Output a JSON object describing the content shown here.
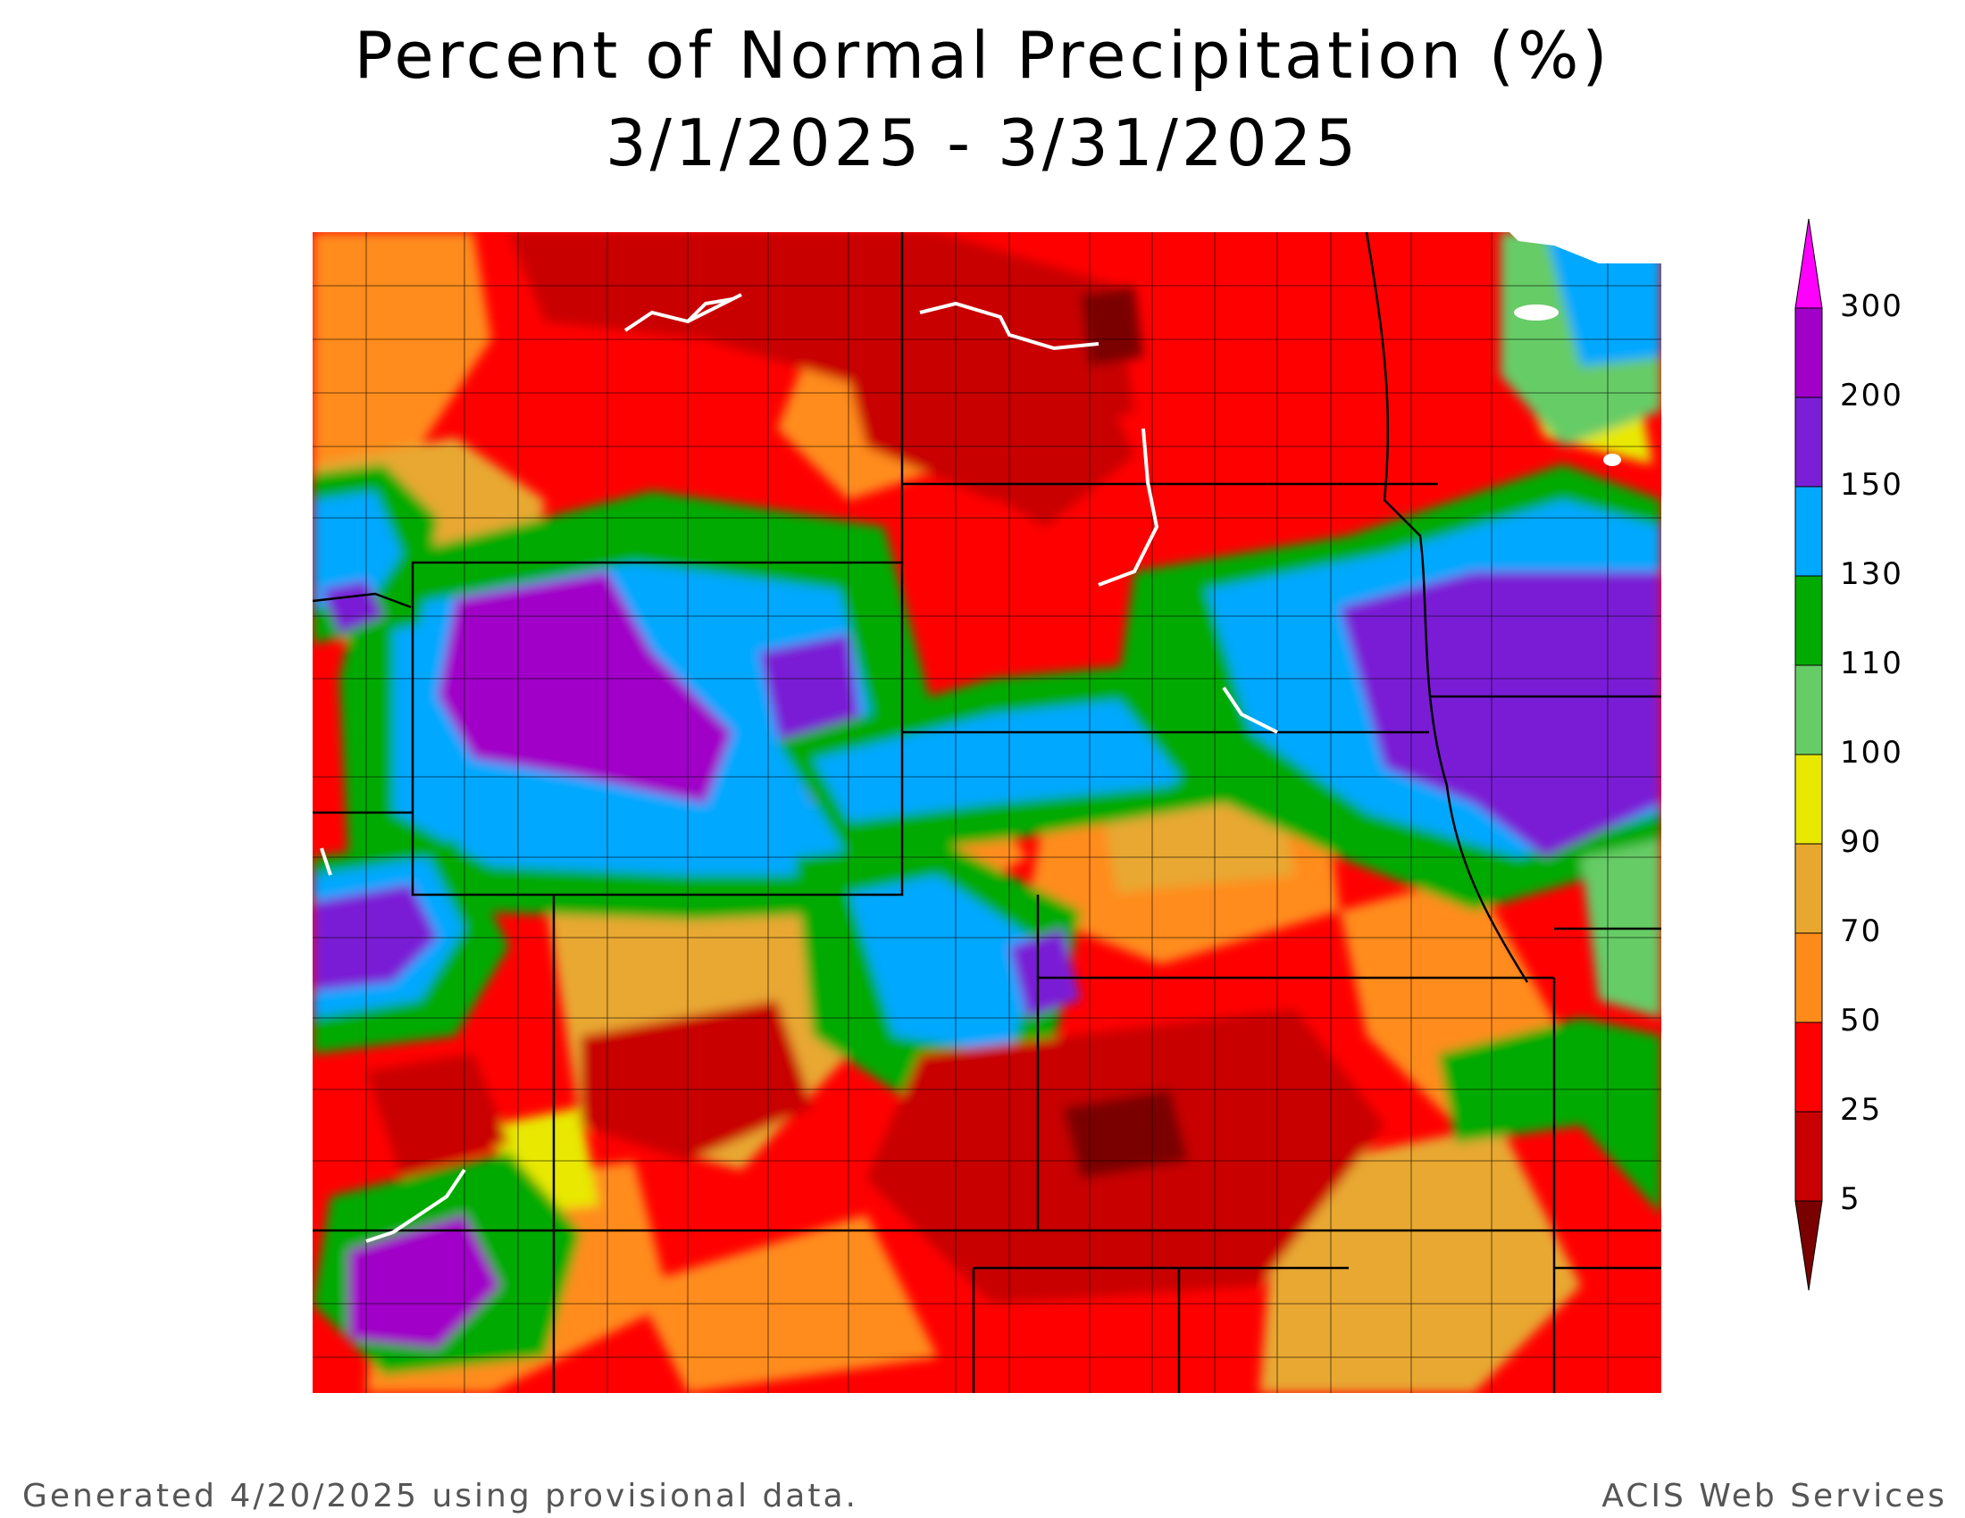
{
  "title": "Percent of Normal Precipitation (%)",
  "subtitle": "3/1/2025 - 3/31/2025",
  "legend": {
    "labels": [
      "300",
      "200",
      "150",
      "130",
      "110",
      "100",
      "90",
      "70",
      "50",
      "25",
      "5"
    ],
    "bins": [
      {
        "color": "#7a0000"
      },
      {
        "color": "#c80000"
      },
      {
        "color": "#ff0000"
      },
      {
        "color": "#ff8c1a"
      },
      {
        "color": "#e8a830"
      },
      {
        "color": "#e8e800"
      },
      {
        "color": "#66cc66"
      },
      {
        "color": "#00aa00"
      },
      {
        "color": "#00a8ff"
      },
      {
        "color": "#7a1fd6"
      },
      {
        "color": "#a000c8"
      },
      {
        "color": "#ff00ff"
      }
    ]
  },
  "map": {
    "background_color": "#ff0000",
    "river_color": "#ffffff",
    "state_line_color": "#000000"
  },
  "footer": {
    "left": "Generated 4/20/2025 using provisional data.",
    "right": "ACIS Web Services"
  }
}
